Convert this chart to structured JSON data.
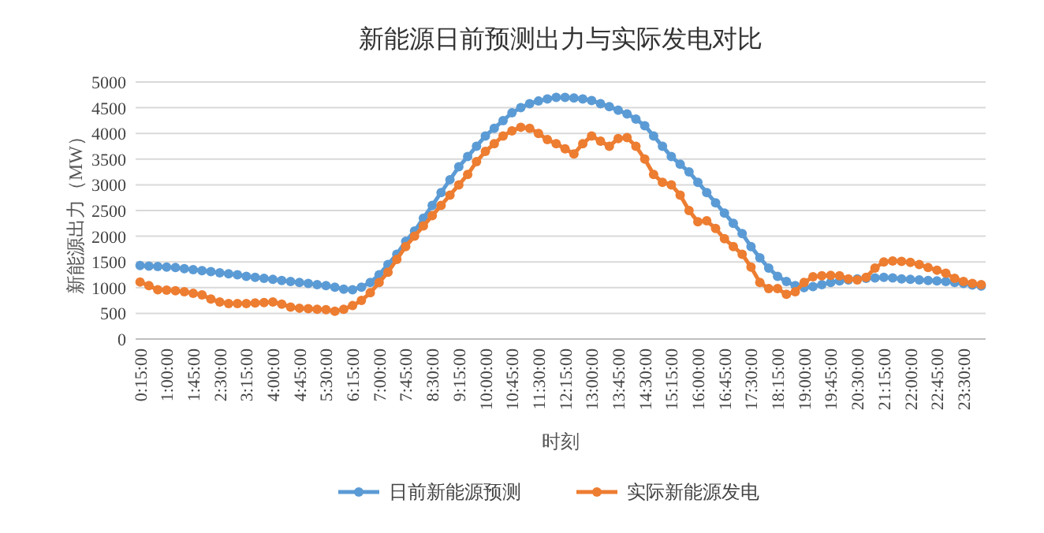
{
  "chart_data": {
    "type": "line",
    "title": "新能源日前预测出力与实际发电对比",
    "xlabel": "时刻",
    "ylabel": "新能源出力（MW）",
    "categories": [
      "0:15:00",
      null,
      null,
      "1:00:00",
      null,
      null,
      "1:45:00",
      null,
      null,
      "2:30:00",
      null,
      null,
      "3:15:00",
      null,
      null,
      "4:00:00",
      null,
      null,
      "4:45:00",
      null,
      null,
      "5:30:00",
      null,
      null,
      "6:15:00",
      null,
      null,
      "7:00:00",
      null,
      null,
      "7:45:00",
      null,
      null,
      "8:30:00",
      null,
      null,
      "9:15:00",
      null,
      null,
      "10:00:00",
      null,
      null,
      "10:45:00",
      null,
      null,
      "11:30:00",
      null,
      null,
      "12:15:00",
      null,
      null,
      "13:00:00",
      null,
      null,
      "13:45:00",
      null,
      null,
      "14:30:00",
      null,
      null,
      "15:15:00",
      null,
      null,
      "16:00:00",
      null,
      null,
      "16:45:00",
      null,
      null,
      "17:30:00",
      null,
      null,
      "18:15:00",
      null,
      null,
      "19:00:00",
      null,
      null,
      "19:45:00",
      null,
      null,
      "20:30:00",
      null,
      null,
      "21:15:00",
      null,
      null,
      "22:00:00",
      null,
      null,
      "22:45:00",
      null,
      null,
      "23:30:00",
      null,
      null
    ],
    "series": [
      {
        "name": "日前新能源预测",
        "color": "#5b9bd5",
        "values": [
          1430,
          1420,
          1410,
          1400,
          1390,
          1370,
          1350,
          1330,
          1310,
          1290,
          1270,
          1250,
          1220,
          1200,
          1180,
          1160,
          1140,
          1120,
          1100,
          1080,
          1060,
          1040,
          1010,
          970,
          960,
          1010,
          1100,
          1250,
          1450,
          1650,
          1900,
          2100,
          2350,
          2600,
          2850,
          3100,
          3350,
          3550,
          3750,
          3950,
          4100,
          4250,
          4400,
          4500,
          4580,
          4630,
          4670,
          4700,
          4700,
          4690,
          4670,
          4640,
          4580,
          4520,
          4450,
          4380,
          4280,
          4150,
          3950,
          3750,
          3550,
          3400,
          3250,
          3050,
          2850,
          2650,
          2450,
          2250,
          2050,
          1800,
          1580,
          1380,
          1220,
          1120,
          1040,
          1000,
          1020,
          1060,
          1100,
          1130,
          1150,
          1170,
          1180,
          1190,
          1200,
          1190,
          1170,
          1160,
          1150,
          1140,
          1130,
          1120,
          1100,
          1080,
          1050,
          1030
        ]
      },
      {
        "name": "实际新能源发电",
        "color": "#ed7d31",
        "values": [
          1110,
          1040,
          960,
          950,
          940,
          920,
          890,
          860,
          780,
          720,
          690,
          690,
          690,
          700,
          710,
          720,
          680,
          620,
          600,
          590,
          580,
          570,
          540,
          580,
          650,
          750,
          900,
          1100,
          1300,
          1550,
          1800,
          2000,
          2200,
          2400,
          2600,
          2800,
          3000,
          3200,
          3450,
          3650,
          3800,
          3950,
          4050,
          4120,
          4100,
          4000,
          3880,
          3800,
          3700,
          3600,
          3800,
          3950,
          3850,
          3750,
          3900,
          3920,
          3750,
          3500,
          3200,
          3050,
          3000,
          2800,
          2500,
          2280,
          2300,
          2150,
          1950,
          1800,
          1650,
          1400,
          1100,
          980,
          980,
          870,
          920,
          1100,
          1210,
          1230,
          1240,
          1230,
          1170,
          1150,
          1200,
          1380,
          1500,
          1520,
          1510,
          1490,
          1450,
          1390,
          1340,
          1280,
          1180,
          1120,
          1080,
          1060
        ]
      }
    ],
    "ylim": [
      0,
      5000
    ],
    "yticks": [
      0,
      500,
      1000,
      1500,
      2000,
      2500,
      3000,
      3500,
      4000,
      4500,
      5000
    ],
    "grid": "y",
    "legend": "bottom",
    "marker": "circle",
    "line_style": "solid"
  }
}
